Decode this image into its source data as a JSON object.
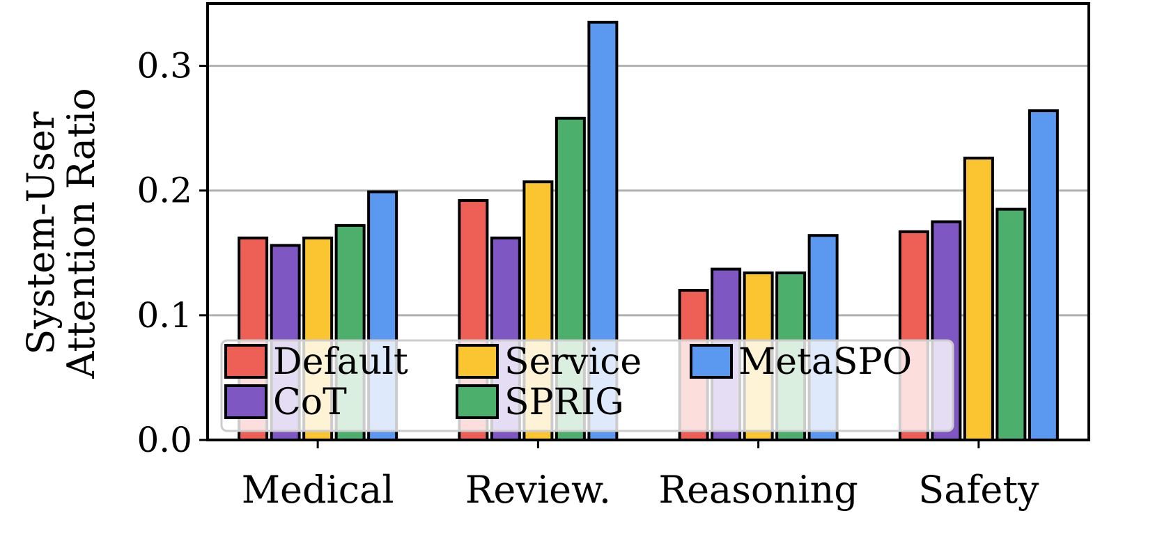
{
  "chart_data": {
    "type": "bar",
    "categories": [
      "Medical",
      "Review.",
      "Reasoning",
      "Safety"
    ],
    "series": [
      {
        "name": "Default",
        "color": "#ee6055",
        "values": [
          0.162,
          0.192,
          0.12,
          0.167
        ]
      },
      {
        "name": "CoT",
        "color": "#7e57c2",
        "values": [
          0.156,
          0.162,
          0.137,
          0.175
        ]
      },
      {
        "name": "Service",
        "color": "#fbc531",
        "values": [
          0.162,
          0.207,
          0.134,
          0.226
        ]
      },
      {
        "name": "SPRIG",
        "color": "#4caf6b",
        "values": [
          0.172,
          0.258,
          0.134,
          0.185
        ]
      },
      {
        "name": "MetaSPO",
        "color": "#5b98f0",
        "values": [
          0.199,
          0.335,
          0.164,
          0.264
        ]
      }
    ],
    "ylabel_lines": [
      "System-User",
      "Attention Ratio"
    ],
    "ylim": [
      0,
      0.35
    ],
    "yticks": [
      "0.0",
      "0.1",
      "0.2",
      "0.3"
    ],
    "grid": "horizontal",
    "legend_position": "lower-left",
    "legend_columns": [
      [
        "Default",
        "CoT"
      ],
      [
        "Service",
        "SPRIG"
      ],
      [
        "MetaSPO"
      ]
    ]
  }
}
